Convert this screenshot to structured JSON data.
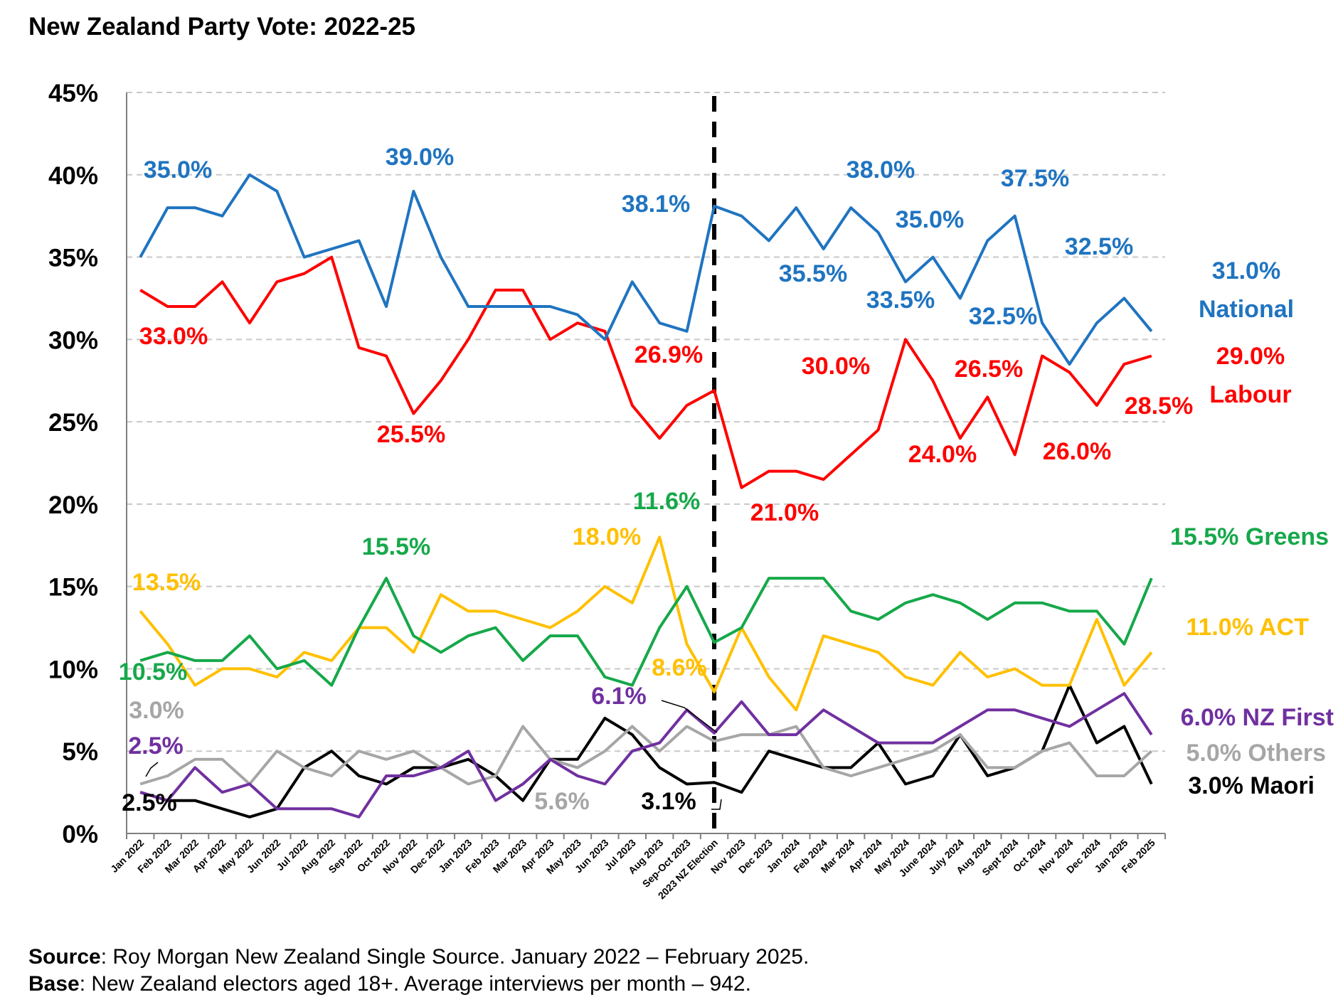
{
  "chart_data": {
    "type": "line",
    "title": "New Zealand Party Vote: 2022-25",
    "xlabel": "",
    "ylabel": "",
    "ylim": [
      0,
      45
    ],
    "yticks": [
      0,
      5,
      10,
      15,
      20,
      25,
      30,
      35,
      40,
      45
    ],
    "ytick_labels": [
      "0%",
      "5%",
      "10%",
      "15%",
      "20%",
      "25%",
      "30%",
      "35%",
      "40%",
      "45%"
    ],
    "grid": "horizontal dashed",
    "election_marker": "2023 NZ Election",
    "categories": [
      "Jan 2022",
      "Feb 2022",
      "Mar 2022",
      "Apr 2022",
      "May 2022",
      "Jun 2022",
      "Jul 2022",
      "Aug 2022",
      "Sep 2022",
      "Oct 2022",
      "Nov 2022",
      "Dec 2022",
      "Jan 2023",
      "Feb 2023",
      "Mar 2023",
      "Apr 2023",
      "May 2023",
      "Jun 2023",
      "Jul 2023",
      "Aug 2023",
      "Sep-Oct 2023",
      "2023 NZ Election",
      "Nov 2023",
      "Dec 2023",
      "Jan 2024",
      "Feb 2024",
      "Mar 2024",
      "Apr 2024",
      "May 2024",
      "June 2024",
      "July 2024",
      "Aug 2024",
      "Sept 2024",
      "Oct 2024",
      "Nov 2024",
      "Dec 2024",
      "Jan 2025",
      "Feb 2025"
    ],
    "series": [
      {
        "key": "national",
        "name": "National",
        "color": "#1f74c0",
        "values": [
          35.0,
          38.0,
          38.0,
          37.5,
          40.0,
          39.0,
          35.0,
          35.5,
          36.0,
          32.0,
          39.0,
          35.0,
          32.0,
          32.0,
          32.0,
          32.0,
          31.5,
          30.0,
          33.5,
          31.0,
          30.5,
          38.1,
          37.5,
          36.0,
          38.0,
          35.5,
          38.0,
          36.5,
          33.5,
          35.0,
          32.5,
          36.0,
          37.5,
          31.0,
          28.5,
          31.0,
          32.5,
          30.5
        ]
      },
      {
        "key": "labour",
        "name": "Labour",
        "color": "#ff0000",
        "values": [
          33.0,
          32.0,
          32.0,
          33.5,
          31.0,
          33.5,
          34.0,
          35.0,
          29.5,
          29.0,
          25.5,
          27.5,
          30.0,
          33.0,
          33.0,
          30.0,
          31.0,
          30.5,
          26.0,
          24.0,
          26.0,
          26.9,
          21.0,
          22.0,
          22.0,
          21.5,
          23.0,
          24.5,
          30.0,
          27.5,
          24.0,
          26.5,
          23.0,
          29.0,
          28.0,
          26.0,
          28.5,
          29.0
        ]
      },
      {
        "key": "greens",
        "name": "Greens",
        "color": "#16a84a",
        "values": [
          10.5,
          11.0,
          10.5,
          10.5,
          12.0,
          10.0,
          10.5,
          9.0,
          12.5,
          15.5,
          12.0,
          11.0,
          12.0,
          12.5,
          10.5,
          12.0,
          12.0,
          9.5,
          9.0,
          12.5,
          15.0,
          11.6,
          12.5,
          15.5,
          15.5,
          15.5,
          13.5,
          13.0,
          14.0,
          14.5,
          14.0,
          13.0,
          14.0,
          14.0,
          13.5,
          13.5,
          11.5,
          15.5
        ]
      },
      {
        "key": "act",
        "name": "ACT",
        "color": "#ffc000",
        "values": [
          13.5,
          11.5,
          9.0,
          10.0,
          10.0,
          9.5,
          11.0,
          10.5,
          12.5,
          12.5,
          11.0,
          14.5,
          13.5,
          13.5,
          13.0,
          12.5,
          13.5,
          15.0,
          14.0,
          18.0,
          11.5,
          8.6,
          12.5,
          9.5,
          7.5,
          12.0,
          11.5,
          11.0,
          9.5,
          9.0,
          11.0,
          9.5,
          10.0,
          9.0,
          9.0,
          13.0,
          9.0,
          11.0
        ]
      },
      {
        "key": "nzfirst",
        "name": "NZ First",
        "color": "#7030a0",
        "values": [
          2.5,
          2.0,
          4.0,
          2.5,
          3.0,
          1.5,
          1.5,
          1.5,
          1.0,
          3.5,
          3.5,
          4.0,
          5.0,
          2.0,
          3.0,
          4.5,
          3.5,
          3.0,
          5.0,
          5.5,
          7.5,
          6.1,
          8.0,
          6.0,
          6.0,
          7.5,
          6.5,
          5.5,
          5.5,
          5.5,
          6.5,
          7.5,
          7.5,
          7.0,
          6.5,
          7.5,
          8.5,
          6.0
        ]
      },
      {
        "key": "others",
        "name": "Others",
        "color": "#a6a6a6",
        "values": [
          3.0,
          3.5,
          4.5,
          4.5,
          3.0,
          5.0,
          4.0,
          3.5,
          5.0,
          4.5,
          5.0,
          4.0,
          3.0,
          3.5,
          6.5,
          4.5,
          4.0,
          5.0,
          6.5,
          5.0,
          6.5,
          5.6,
          6.0,
          6.0,
          6.5,
          4.0,
          3.5,
          4.0,
          4.5,
          5.0,
          6.0,
          4.0,
          4.0,
          5.0,
          5.5,
          3.5,
          3.5,
          5.0
        ]
      },
      {
        "key": "maori",
        "name": "Maori",
        "color": "#000000",
        "values": [
          2.5,
          2.0,
          2.0,
          1.5,
          1.0,
          1.5,
          4.0,
          5.0,
          3.5,
          3.0,
          4.0,
          4.0,
          4.5,
          3.5,
          2.0,
          4.5,
          4.5,
          7.0,
          6.0,
          4.0,
          3.0,
          3.1,
          2.5,
          5.0,
          4.5,
          4.0,
          4.0,
          5.5,
          3.0,
          3.5,
          6.0,
          3.5,
          4.0,
          5.0,
          9.0,
          5.5,
          6.5,
          3.0
        ]
      }
    ],
    "annotations": [
      {
        "text": "35.0%",
        "series": "national"
      },
      {
        "text": "39.0%",
        "series": "national"
      },
      {
        "text": "38.1%",
        "series": "national"
      },
      {
        "text": "38.0%",
        "series": "national"
      },
      {
        "text": "37.5%",
        "series": "national"
      },
      {
        "text": "35.0%",
        "series": "national"
      },
      {
        "text": "35.5%",
        "series": "national"
      },
      {
        "text": "33.5%",
        "series": "national"
      },
      {
        "text": "32.5%",
        "series": "national"
      },
      {
        "text": "32.5%",
        "series": "national"
      },
      {
        "text": "31.0%",
        "series": "national"
      },
      {
        "text": "National",
        "series": "national"
      },
      {
        "text": "33.0%",
        "series": "labour"
      },
      {
        "text": "25.5%",
        "series": "labour"
      },
      {
        "text": "26.9%",
        "series": "labour"
      },
      {
        "text": "30.0%",
        "series": "labour"
      },
      {
        "text": "26.5%",
        "series": "labour"
      },
      {
        "text": "21.0%",
        "series": "labour"
      },
      {
        "text": "24.0%",
        "series": "labour"
      },
      {
        "text": "26.0%",
        "series": "labour"
      },
      {
        "text": "28.5%",
        "series": "labour"
      },
      {
        "text": "29.0%",
        "series": "labour"
      },
      {
        "text": "Labour",
        "series": "labour"
      },
      {
        "text": "11.6%",
        "series": "greens"
      },
      {
        "text": "15.5%",
        "series": "greens"
      },
      {
        "text": "10.5%",
        "series": "greens"
      },
      {
        "text": "15.5% Greens",
        "series": "greens"
      },
      {
        "text": "18.0%",
        "series": "act"
      },
      {
        "text": "13.5%",
        "series": "act"
      },
      {
        "text": "8.6%",
        "series": "act"
      },
      {
        "text": "11.0% ACT",
        "series": "act"
      },
      {
        "text": "6.1%",
        "series": "nzfirst"
      },
      {
        "text": "2.5%",
        "series": "nzfirst"
      },
      {
        "text": "6.0% NZ First",
        "series": "nzfirst"
      },
      {
        "text": "3.0%",
        "series": "others"
      },
      {
        "text": "5.6%",
        "series": "others"
      },
      {
        "text": "5.0% Others",
        "series": "others"
      },
      {
        "text": "2.5%",
        "series": "maori"
      },
      {
        "text": "3.1%",
        "series": "maori"
      },
      {
        "text": "3.0% Maori",
        "series": "maori"
      }
    ]
  },
  "footer": {
    "source_label": "Source",
    "source_text": ": Roy Morgan New Zealand Single Source. January 2022 – February 2025.",
    "base_label": "Base",
    "base_text": ": New Zealand electors aged 18+. Average interviews per month – 942."
  }
}
